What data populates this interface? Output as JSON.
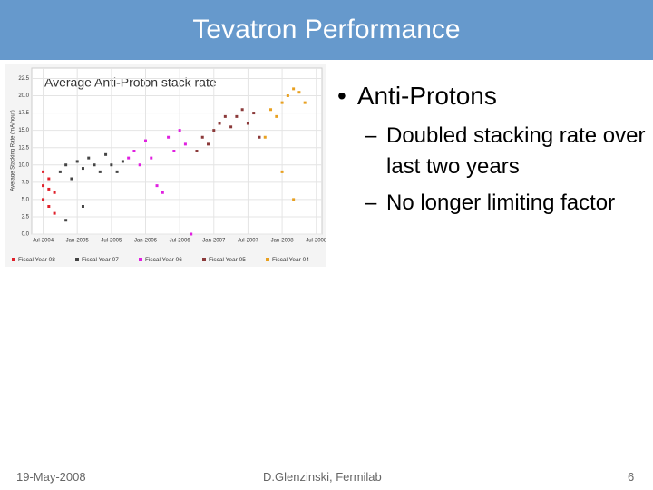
{
  "header": {
    "title": "Tevatron Performance"
  },
  "chart_data": {
    "type": "scatter",
    "title": "Average Anti-Proton stack rate",
    "y_label": "Average Stacking Rate (mA/hour)",
    "xlim": [
      "2004-05",
      "2008-08"
    ],
    "xticks": [
      {
        "value": "2004-07",
        "label": "Jul-2004"
      },
      {
        "value": "2005-01",
        "label": "Jan-2005"
      },
      {
        "value": "2005-07",
        "label": "Jul-2005"
      },
      {
        "value": "2006-01",
        "label": "Jan-2006"
      },
      {
        "value": "2006-07",
        "label": "Jul-2006"
      },
      {
        "value": "2007-01",
        "label": "Jan-2007"
      },
      {
        "value": "2007-07",
        "label": "Jul-2007"
      },
      {
        "value": "2008-01",
        "label": "Jan-2008"
      },
      {
        "value": "2008-07",
        "label": "Jul-2008"
      }
    ],
    "ylim": [
      0,
      24
    ],
    "yticks": [
      {
        "value": 0,
        "label": "0.0"
      },
      2.5,
      {
        "value": 5,
        "label": "5.0"
      },
      7.5,
      {
        "value": 10,
        "label": "10.0"
      },
      12.5,
      {
        "value": 15,
        "label": "15.0"
      },
      17.5,
      {
        "value": 20,
        "label": "20.0"
      },
      22.5
    ],
    "grid": true,
    "series": [
      {
        "name": "Fiscal Year 08",
        "color": "#e0202a",
        "x": [
          "2004-07",
          "2004-07",
          "2004-08",
          "2004-08",
          "2004-08",
          "2004-09",
          "2004-09",
          "2004-07"
        ],
        "y": [
          7,
          5,
          6.5,
          4,
          8,
          6,
          3,
          9
        ]
      },
      {
        "name": "Fiscal Year 07",
        "color": "#444444",
        "x": [
          "2004-10",
          "2004-11",
          "2004-12",
          "2005-01",
          "2005-02",
          "2005-03",
          "2005-04",
          "2005-05",
          "2005-06",
          "2005-07",
          "2005-08",
          "2005-09",
          "2004-11",
          "2005-02"
        ],
        "y": [
          9,
          10,
          8,
          10.5,
          9.5,
          11,
          10,
          9,
          11.5,
          10,
          9,
          10.5,
          2,
          4
        ]
      },
      {
        "name": "Fiscal Year 06",
        "color": "#e020e0",
        "x": [
          "2005-10",
          "2005-11",
          "2005-12",
          "2006-01",
          "2006-02",
          "2006-03",
          "2006-04",
          "2006-05",
          "2006-06",
          "2006-07",
          "2006-08",
          "2006-09"
        ],
        "y": [
          11,
          12,
          10,
          13.5,
          11,
          7,
          6,
          14,
          12,
          15,
          13,
          0
        ]
      },
      {
        "name": "Fiscal Year 05",
        "color": "#8b3a3a",
        "x": [
          "2006-10",
          "2006-11",
          "2006-12",
          "2007-01",
          "2007-02",
          "2007-03",
          "2007-04",
          "2007-05",
          "2007-06",
          "2007-07",
          "2007-08",
          "2007-09"
        ],
        "y": [
          12,
          14,
          13,
          15,
          16,
          17,
          15.5,
          17,
          18,
          16,
          17.5,
          14
        ]
      },
      {
        "name": "Fiscal Year 04",
        "color": "#e8a020",
        "x": [
          "2007-10",
          "2007-11",
          "2007-12",
          "2008-01",
          "2008-02",
          "2008-03",
          "2008-04",
          "2008-05",
          "2008-01",
          "2008-03"
        ],
        "y": [
          14,
          18,
          17,
          19,
          20,
          21,
          20.5,
          19,
          9,
          5
        ]
      }
    ]
  },
  "bullets": {
    "main": "Anti-Protons",
    "subs": [
      "Doubled stacking rate over last two years",
      "No longer limiting factor"
    ]
  },
  "footer": {
    "date": "19-May-2008",
    "author": "D.Glenzinski, Fermilab",
    "page": "6"
  }
}
